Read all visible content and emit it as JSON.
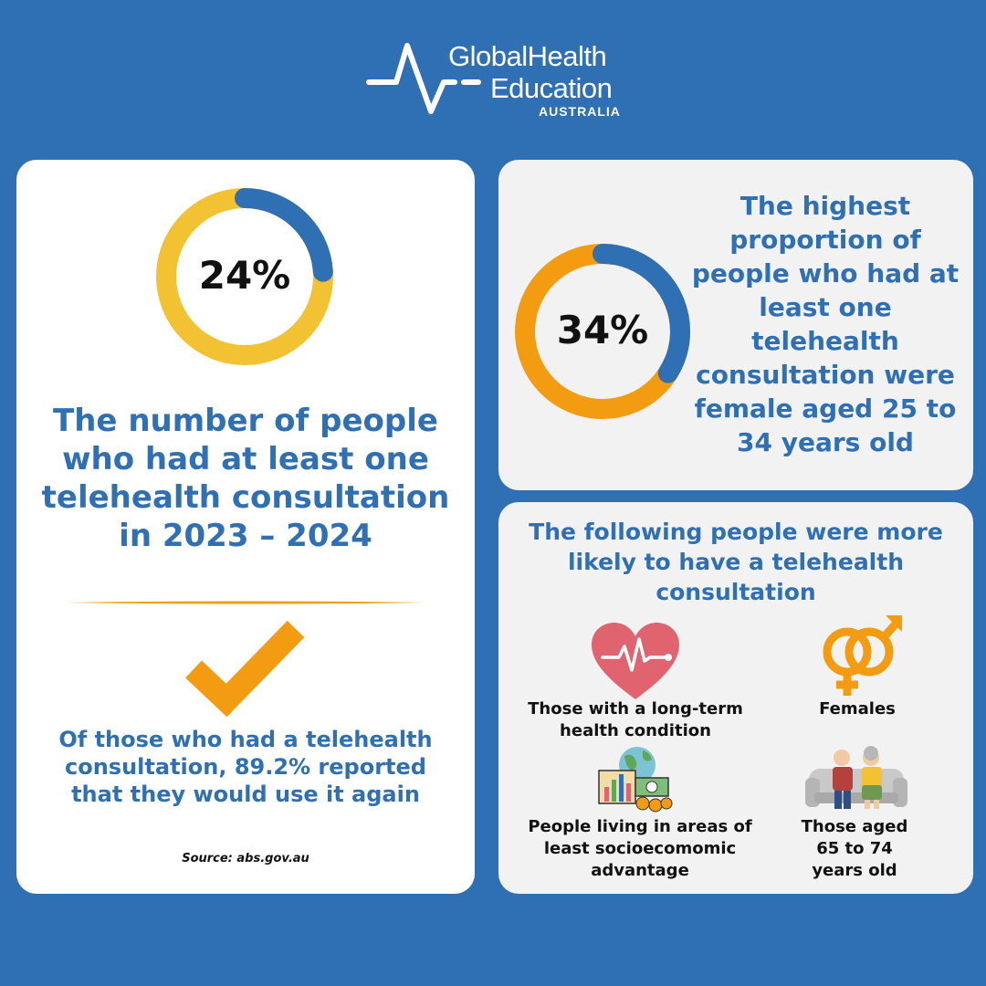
{
  "logo": {
    "line1": "GlobalHealth",
    "line2": "Education",
    "line3": "AUSTRALIA"
  },
  "left_card": {
    "donut": {
      "percent": 24,
      "label": "24%",
      "fill_color": "#2f6fb3",
      "track_color": "#f3c232"
    },
    "heading": "The number of people who had at least one telehealth consultation in 2023 – 2024",
    "check_icon": "checkmark-icon",
    "subtext": "Of those who had a telehealth consultation, 89.2% reported that they would use it again",
    "source": "Source: abs.gov.au"
  },
  "top_right_card": {
    "donut": {
      "percent": 34,
      "label": "34%",
      "fill_color": "#2f6fb3",
      "track_color": "#f39c12"
    },
    "text": "The highest proportion of people who had at least one telehealth consultation were female aged 25 to 34 years old"
  },
  "bottom_right_card": {
    "heading": "The following people were more likely to have a telehealth consultation",
    "items": [
      {
        "icon": "heart-pulse-icon",
        "label": "Those with a long-term health condition"
      },
      {
        "icon": "gender-symbols-icon",
        "label": "Females"
      },
      {
        "icon": "economy-globe-icon",
        "label": "People living in areas of least socioecomomic advantage"
      },
      {
        "icon": "elderly-couple-icon",
        "label": "Those aged 65 to 74 years old"
      }
    ]
  },
  "colors": {
    "background": "#2f6fb3",
    "accent_blue": "#2f6fb3",
    "accent_orange": "#f39c12",
    "accent_yellow": "#f3c232"
  }
}
